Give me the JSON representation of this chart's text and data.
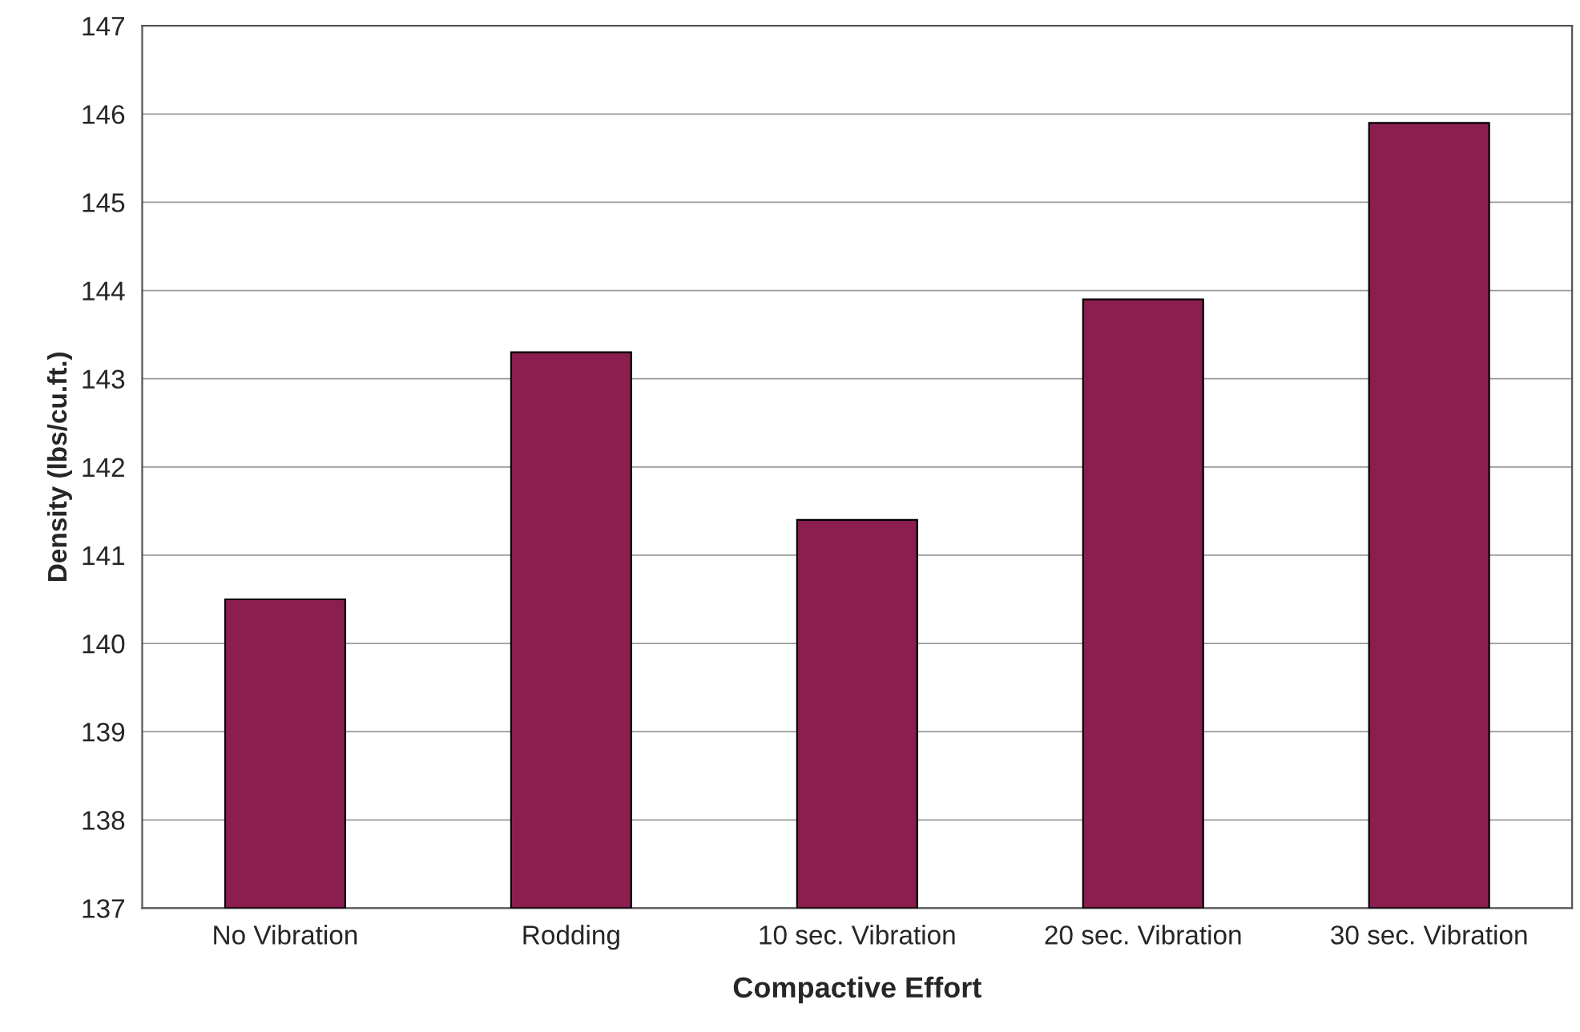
{
  "chart_data": {
    "type": "bar",
    "xlabel": "Compactive Effort",
    "ylabel": "Density (lbs/cu.ft.)",
    "categories": [
      "No Vibration",
      "Rodding",
      "10 sec. Vibration",
      "20 sec. Vibration",
      "30 sec. Vibration"
    ],
    "values": [
      140.5,
      143.3,
      141.4,
      143.9,
      145.9
    ],
    "color": "#8b1d4f",
    "ylim": [
      137,
      147
    ],
    "yticks": [
      137,
      138,
      139,
      140,
      141,
      142,
      143,
      144,
      145,
      146,
      147
    ],
    "grid": "y",
    "legend": false
  }
}
